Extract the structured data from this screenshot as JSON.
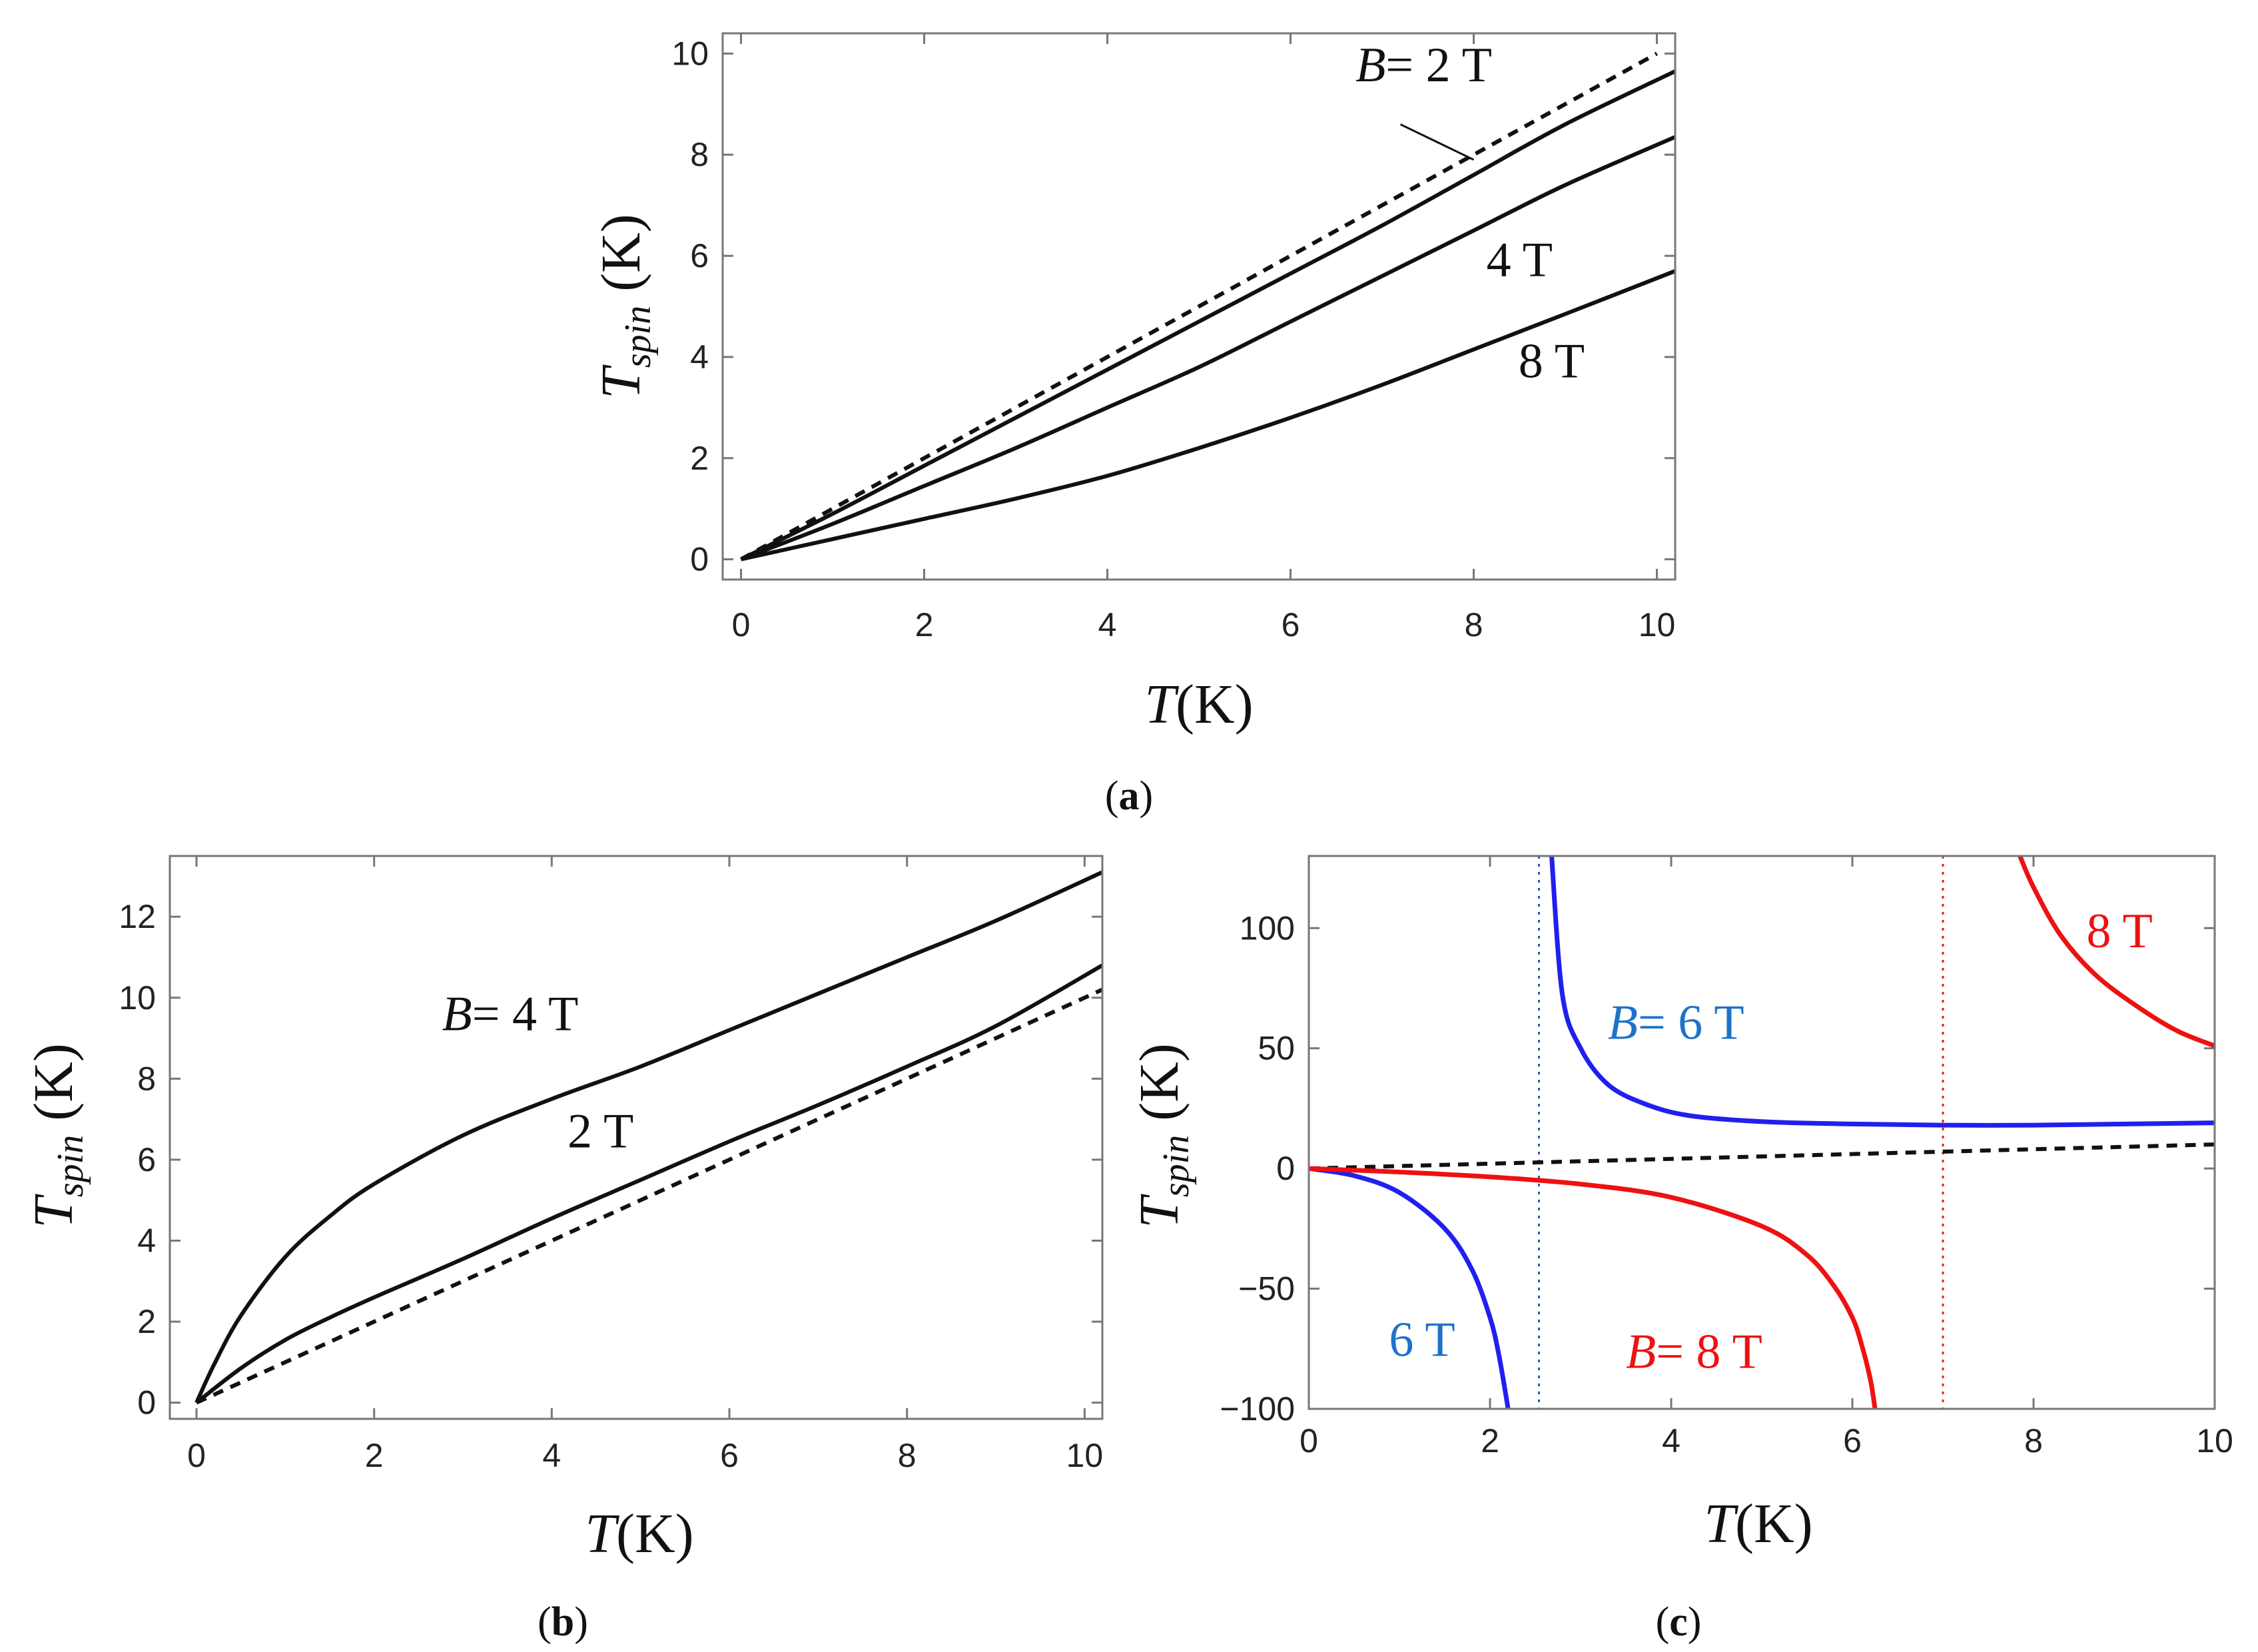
{
  "chart_data": [
    {
      "panel_id": "a",
      "type": "line",
      "caption": "a",
      "xlabel": "T(K)",
      "ylabel": "T_spin (K)",
      "xlim": [
        -0.2,
        10.2
      ],
      "ylim": [
        -0.4,
        10.4
      ],
      "xticks": [
        "0",
        "2",
        "4",
        "6",
        "8",
        "10"
      ],
      "yticks": [
        "0",
        "2",
        "4",
        "6",
        "8",
        "10"
      ],
      "xtick_values": [
        0,
        2,
        4,
        6,
        8,
        10
      ],
      "ytick_values": [
        0,
        2,
        4,
        6,
        8,
        10
      ],
      "series": [
        {
          "name": "reference (T_spin = T)",
          "style": "dashed",
          "color": "#111111",
          "x": [
            0,
            2,
            4,
            6,
            8,
            10
          ],
          "y": [
            0,
            2,
            4,
            6,
            8,
            10
          ]
        },
        {
          "name": "B = 2 T",
          "style": "solid",
          "color": "#111111",
          "x": [
            0,
            1,
            2,
            3,
            4,
            5,
            6,
            7,
            8,
            9,
            10.2
          ],
          "y": [
            0,
            0.9,
            1.85,
            2.8,
            3.75,
            4.7,
            5.65,
            6.6,
            7.6,
            8.6,
            9.65
          ]
        },
        {
          "name": "B = 4 T",
          "style": "solid",
          "color": "#111111",
          "x": [
            0,
            1,
            2,
            3,
            4,
            5,
            6,
            7,
            8,
            9,
            10.2
          ],
          "y": [
            0,
            0.7,
            1.45,
            2.2,
            3.0,
            3.8,
            4.7,
            5.6,
            6.5,
            7.4,
            8.35
          ]
        },
        {
          "name": "B = 8 T",
          "style": "solid",
          "color": "#111111",
          "x": [
            0,
            1,
            2,
            3,
            4,
            5,
            6,
            7,
            8,
            9,
            10.2
          ],
          "y": [
            0,
            0.4,
            0.8,
            1.2,
            1.65,
            2.2,
            2.8,
            3.45,
            4.15,
            4.85,
            5.7
          ]
        }
      ],
      "annotations": [
        {
          "text_italic": "B",
          "text": "= 2 T",
          "x": 8.2,
          "y": 9.45,
          "color": "#111111",
          "anchor": "end"
        },
        {
          "text_italic": "",
          "text": "4 T",
          "x": 8.5,
          "y": 5.6,
          "color": "#111111",
          "anchor": "middle"
        },
        {
          "text_italic": "",
          "text": "8 T",
          "x": 8.85,
          "y": 3.6,
          "color": "#111111",
          "anchor": "middle"
        }
      ],
      "leader_lines": [
        {
          "x1": 7.2,
          "y1": 8.6,
          "x2": 8.0,
          "y2": 7.9
        }
      ]
    },
    {
      "panel_id": "b",
      "type": "line",
      "caption": "b",
      "xlabel": "T(K)",
      "ylabel": "T_spin (K)",
      "xlim": [
        -0.3,
        10.2
      ],
      "ylim": [
        -0.4,
        13.5
      ],
      "xticks": [
        "0",
        "2",
        "4",
        "6",
        "8",
        "10"
      ],
      "yticks": [
        "0",
        "2",
        "4",
        "6",
        "8",
        "10",
        "12"
      ],
      "xtick_values": [
        0,
        2,
        4,
        6,
        8,
        10
      ],
      "ytick_values": [
        0,
        2,
        4,
        6,
        8,
        10,
        12
      ],
      "series": [
        {
          "name": "reference (T_spin = T)",
          "style": "dashed",
          "color": "#111111",
          "x": [
            0,
            2,
            4,
            6,
            8,
            10.2
          ],
          "y": [
            0,
            2,
            4,
            6,
            8,
            10.2
          ]
        },
        {
          "name": "B = 2 T",
          "style": "solid",
          "color": "#111111",
          "x": [
            0,
            0.5,
            1,
            1.5,
            2,
            3,
            4,
            5,
            6,
            7,
            8,
            9,
            10.2
          ],
          "y": [
            0,
            0.85,
            1.55,
            2.1,
            2.6,
            3.55,
            4.55,
            5.5,
            6.45,
            7.35,
            8.3,
            9.3,
            10.8
          ]
        },
        {
          "name": "B = 4 T",
          "style": "solid",
          "color": "#111111",
          "x": [
            0,
            0.2,
            0.5,
            1,
            1.5,
            2,
            3,
            4,
            5,
            6,
            7,
            8,
            9,
            10.2
          ],
          "y": [
            0,
            0.95,
            2.15,
            3.6,
            4.6,
            5.4,
            6.6,
            7.5,
            8.3,
            9.2,
            10.1,
            11.0,
            11.9,
            13.1
          ]
        }
      ],
      "annotations": [
        {
          "text_italic": "B",
          "text": "= 4 T",
          "x": 4.3,
          "y": 9.2,
          "color": "#111111",
          "anchor": "end"
        },
        {
          "text_italic": "",
          "text": "2 T",
          "x": 4.55,
          "y": 6.3,
          "color": "#111111",
          "anchor": "middle"
        }
      ],
      "leader_lines": []
    },
    {
      "panel_id": "c",
      "type": "line",
      "caption": "c",
      "xlabel": "T(K)",
      "ylabel": "T_spin (K)",
      "xlim": [
        0,
        10
      ],
      "ylim": [
        -100,
        130
      ],
      "xticks": [
        "0",
        "2",
        "4",
        "6",
        "8",
        "10"
      ],
      "yticks": [
        "−100",
        "−50",
        "0",
        "50",
        "100"
      ],
      "xtick_values": [
        0,
        2,
        4,
        6,
        8,
        10
      ],
      "ytick_values": [
        -100,
        -50,
        0,
        50,
        100
      ],
      "series": [
        {
          "name": "reference (T_spin = T)",
          "style": "dashed",
          "color": "#111111",
          "x": [
            0,
            2,
            4,
            6,
            8,
            10
          ],
          "y": [
            0,
            2,
            4,
            6,
            8,
            10
          ]
        },
        {
          "name": "B = 6 T (T below divergence)",
          "style": "solid",
          "color": "#2020ee",
          "x": [
            0,
            0.5,
            1,
            1.5,
            1.8,
            2.0,
            2.1,
            2.2
          ],
          "y": [
            0,
            -3,
            -10,
            -25,
            -42,
            -62,
            -78,
            -100
          ]
        },
        {
          "name": "B = 6 T (T above divergence)",
          "style": "solid",
          "color": "#2020ee",
          "x": [
            2.68,
            2.8,
            3.0,
            3.3,
            3.7,
            4.2,
            5.0,
            6.0,
            7.0,
            8.0,
            9.0,
            10.0
          ],
          "y": [
            130,
            72,
            50,
            35,
            27,
            22,
            19.5,
            18.5,
            18,
            18,
            18.5,
            19
          ]
        },
        {
          "name": "B = 8 T (T below divergence)",
          "style": "solid",
          "color": "#ee1111",
          "x": [
            0,
            1,
            2,
            3,
            4,
            5,
            5.5,
            5.8,
            6.0,
            6.1,
            6.2,
            6.25
          ],
          "y": [
            0,
            -1.5,
            -3.5,
            -6.5,
            -12,
            -24,
            -36,
            -49,
            -62,
            -73,
            -88,
            -100
          ]
        },
        {
          "name": "B = 8 T (T above divergence)",
          "style": "solid",
          "color": "#ee1111",
          "x": [
            7.85,
            8.0,
            8.3,
            8.7,
            9.2,
            9.6,
            10.0
          ],
          "y": [
            130,
            117,
            97,
            80,
            66,
            57,
            51
          ]
        }
      ],
      "reference_lines": [
        {
          "x": 2.54,
          "color": "#2a55c0",
          "style": "dotted"
        },
        {
          "x": 7.0,
          "color": "#e02020",
          "style": "dotted"
        }
      ],
      "annotations": [
        {
          "text_italic": "B",
          "text": "= 6 T",
          "x": 3.3,
          "y": 54,
          "color": "#1e72c8",
          "anchor": "start"
        },
        {
          "text_italic": "",
          "text": "6 T",
          "x": 1.25,
          "y": -78,
          "color": "#1e72c8",
          "anchor": "middle"
        },
        {
          "text_italic": "B",
          "text": "= 8 T",
          "x": 3.5,
          "y": -83,
          "color": "#ee1111",
          "anchor": "start"
        },
        {
          "text_italic": "",
          "text": "8 T",
          "x": 8.95,
          "y": 92,
          "color": "#ee1111",
          "anchor": "middle"
        }
      ],
      "leader_lines": []
    }
  ]
}
